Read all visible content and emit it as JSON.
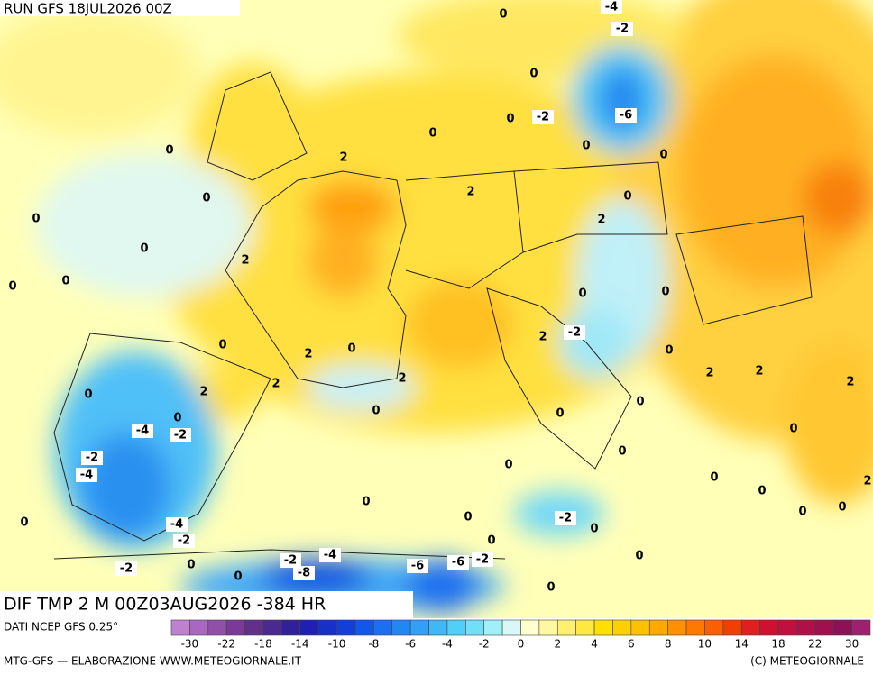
{
  "header": {
    "run": "RUN GFS 18JUL2026 00Z"
  },
  "map": {
    "title": "DIF TMP 2 M 00Z03AUG2026 -384 HR",
    "contour_labels": [
      0,
      -4,
      -2,
      0,
      0,
      -2,
      -6,
      0,
      0,
      0,
      2,
      0,
      2,
      0,
      0,
      0,
      2,
      0,
      2,
      0,
      0,
      0,
      0,
      0,
      0,
      2,
      2,
      -2,
      0,
      2,
      2,
      2,
      2,
      2,
      0,
      2,
      0,
      0,
      0,
      0,
      -4,
      -2,
      0,
      0,
      -2,
      -4,
      0,
      0,
      2,
      0,
      0,
      0,
      0,
      0,
      -2,
      0,
      -4,
      0,
      -2,
      0,
      -2,
      -4,
      -8,
      -2,
      0,
      0,
      -6,
      -6,
      -2,
      0,
      0
    ]
  },
  "colorbar": {
    "source": "DATI NCEP GFS 0.25°",
    "colors": [
      "#c080d0",
      "#a868c0",
      "#9050a8",
      "#7a3a98",
      "#60308a",
      "#4a2a90",
      "#30209a",
      "#2020b0",
      "#1830c8",
      "#1040d8",
      "#1058e8",
      "#1a70f0",
      "#2088f0",
      "#30a0f8",
      "#40b8f8",
      "#50d0f8",
      "#70e0f8",
      "#a0f0f8",
      "#d8f8f8",
      "#ffffd0",
      "#fff8a0",
      "#fff070",
      "#ffe840",
      "#ffe000",
      "#ffd000",
      "#ffc000",
      "#ffa800",
      "#ff9000",
      "#ff7800",
      "#f86000",
      "#f04000",
      "#e02020",
      "#d01030",
      "#c01040",
      "#b01048",
      "#a01050",
      "#901058",
      "#a02070"
    ],
    "labels": [
      -30,
      -22,
      -18,
      -14,
      -10,
      -8,
      -6,
      -4,
      -2,
      0,
      2,
      4,
      6,
      8,
      10,
      14,
      18,
      22,
      30
    ]
  },
  "footer": {
    "left": "MTG-GFS — ELABORAZIONE WWW.METEOGIORNALE.IT",
    "right": "(C) METEOGIORNALE"
  }
}
